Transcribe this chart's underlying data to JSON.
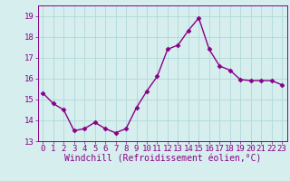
{
  "x": [
    0,
    1,
    2,
    3,
    4,
    5,
    6,
    7,
    8,
    9,
    10,
    11,
    12,
    13,
    14,
    15,
    16,
    17,
    18,
    19,
    20,
    21,
    22,
    23
  ],
  "y": [
    15.3,
    14.8,
    14.5,
    13.5,
    13.6,
    13.9,
    13.6,
    13.4,
    13.6,
    14.6,
    15.4,
    16.1,
    17.4,
    17.6,
    18.3,
    18.9,
    17.4,
    16.6,
    16.4,
    15.95,
    15.9,
    15.9,
    15.9,
    15.7
  ],
  "line_color": "#880088",
  "marker": "D",
  "marker_size": 2.5,
  "bg_color": "#d6eeee",
  "grid_color": "#b0d8d8",
  "xlabel": "Windchill (Refroidissement éolien,°C)",
  "xlabel_color": "#880088",
  "tick_color": "#880088",
  "ylim": [
    13,
    19.5
  ],
  "xlim": [
    -0.5,
    23.5
  ],
  "yticks": [
    13,
    14,
    15,
    16,
    17,
    18,
    19
  ],
  "xticks": [
    0,
    1,
    2,
    3,
    4,
    5,
    6,
    7,
    8,
    9,
    10,
    11,
    12,
    13,
    14,
    15,
    16,
    17,
    18,
    19,
    20,
    21,
    22,
    23
  ],
  "tick_fontsize": 6.5,
  "xlabel_fontsize": 7.0,
  "line_width": 1.0
}
